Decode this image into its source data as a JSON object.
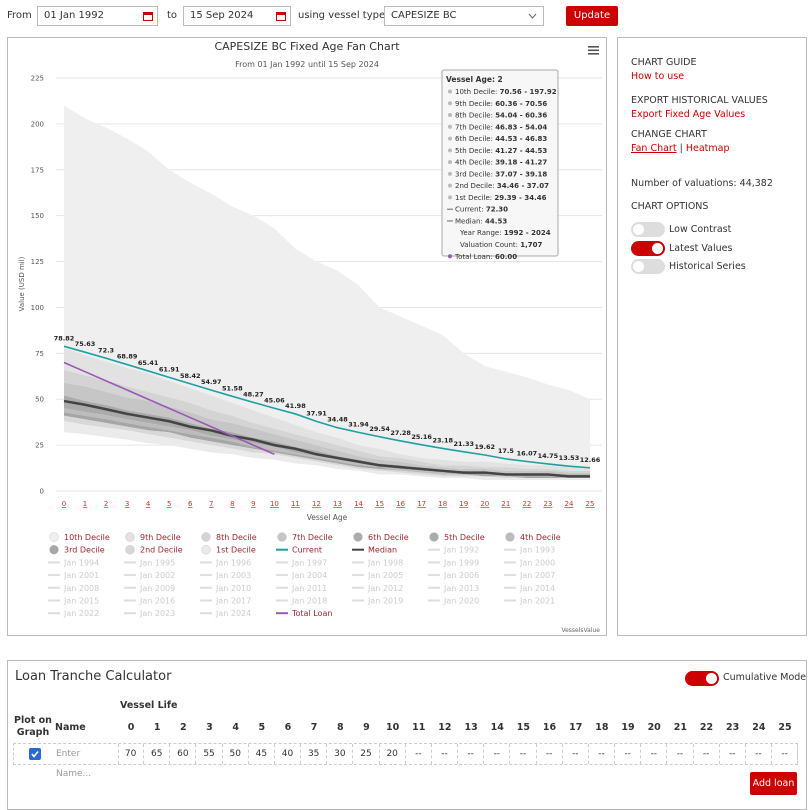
{
  "filters": {
    "from_label": "From",
    "from_date": "01 Jan 1992",
    "to_label": "to",
    "to_date": "15 Sep 2024",
    "vessel_label": "using vessel type",
    "vessel_type": "CAPESIZE BC",
    "button": "Update"
  },
  "chart_data": {
    "type": "fan",
    "title": "CAPESIZE BC Fixed Age Fan Chart",
    "subtitle": "From 01 Jan 1992 until 15 Sep 2024",
    "y_label": "Value (USD mil)",
    "x_label": "Vessel Age",
    "categories": [
      "0",
      "1",
      "2",
      "3",
      "4",
      "5",
      "6",
      "7",
      "8",
      "9",
      "10",
      "11",
      "12",
      "13",
      "14",
      "15",
      "16",
      "17",
      "18",
      "19",
      "20",
      "21",
      "22",
      "23",
      "24",
      "25"
    ],
    "ylim": [
      0,
      225
    ],
    "yticks": [
      0,
      25,
      50,
      75,
      100,
      125,
      150,
      175,
      200,
      225
    ],
    "grid": true,
    "decile_bounds": [
      [
        32,
        31,
        29.39,
        28,
        26,
        25,
        23,
        21,
        20,
        18,
        17,
        15,
        14,
        12,
        11,
        9,
        9,
        8,
        7,
        7,
        6,
        6,
        6,
        6,
        6,
        6
      ],
      [
        38,
        36,
        34.46,
        33,
        31,
        29,
        27,
        25,
        23,
        21,
        20,
        18,
        16,
        14,
        12,
        11,
        10,
        9,
        8,
        8,
        8,
        7,
        7,
        7,
        7,
        7
      ],
      [
        41,
        39,
        37.07,
        35,
        33,
        32,
        29,
        27,
        25,
        23,
        21,
        19,
        17,
        15,
        13,
        12,
        11,
        10,
        9,
        9,
        8,
        8,
        7,
        7,
        7,
        7
      ],
      [
        43,
        41,
        39.18,
        37,
        35,
        33,
        31,
        29,
        27,
        24,
        22,
        20,
        18,
        16,
        14,
        13,
        11,
        10,
        9,
        9,
        9,
        8,
        8,
        8,
        7,
        7
      ],
      [
        45,
        43,
        41.27,
        39,
        37,
        35,
        33,
        30,
        28,
        26,
        24,
        21,
        19,
        17,
        15,
        13,
        12,
        11,
        10,
        9,
        9,
        9,
        8,
        8,
        8,
        8
      ],
      [
        49,
        47,
        44.53,
        42,
        40,
        38,
        35,
        33,
        30,
        28,
        25,
        23,
        20,
        18,
        16,
        14,
        13,
        12,
        11,
        10,
        10,
        9,
        9,
        9,
        8,
        8
      ],
      [
        52,
        49,
        46.83,
        44,
        42,
        40,
        37,
        34,
        32,
        29,
        27,
        24,
        22,
        19,
        17,
        15,
        14,
        12,
        11,
        11,
        10,
        10,
        9,
        9,
        9,
        9
      ],
      [
        59,
        57,
        54.04,
        51,
        49,
        46,
        43,
        39,
        37,
        34,
        31,
        28,
        25,
        22,
        19,
        17,
        16,
        14,
        13,
        12,
        12,
        11,
        11,
        11,
        10,
        10
      ],
      [
        66,
        63,
        60.36,
        57,
        54,
        51,
        48,
        44,
        41,
        37,
        34,
        31,
        28,
        25,
        22,
        19,
        18,
        16,
        14,
        14,
        13,
        13,
        12,
        12,
        11,
        11
      ],
      [
        78,
        74,
        70.56,
        67,
        64,
        60,
        56,
        52,
        48,
        44,
        40,
        36,
        32,
        29,
        25,
        23,
        20,
        18,
        17,
        16,
        16,
        15,
        14,
        14,
        13,
        13
      ],
      [
        210,
        203,
        197.92,
        192,
        185,
        175,
        168,
        162,
        155,
        150,
        143,
        132,
        125,
        120,
        112,
        100,
        95,
        90,
        85,
        75,
        68,
        65,
        62,
        58,
        55,
        50
      ]
    ],
    "bands": [
      {
        "name": "10th Decile",
        "color": "#efefef"
      },
      {
        "name": "9th Decile",
        "color": "#e2e2e2"
      },
      {
        "name": "8th Decile",
        "color": "#d4d4d4"
      },
      {
        "name": "7th Decile",
        "color": "#c6c6c6"
      },
      {
        "name": "6th Decile",
        "color": "#ababab"
      },
      {
        "name": "5th Decile",
        "color": "#ababab"
      },
      {
        "name": "4th Decile",
        "color": "#bcbcbc"
      },
      {
        "name": "3rd Decile",
        "color": "#a6a6a6"
      },
      {
        "name": "2nd Decile",
        "color": "#d8d8d8"
      },
      {
        "name": "1st Decile",
        "color": "#ebebeb"
      }
    ],
    "series": [
      {
        "name": "Current",
        "color": "#1fa0a0",
        "values": [
          78.82,
          75.63,
          72.3,
          68.89,
          65.41,
          61.91,
          58.42,
          54.97,
          51.58,
          48.27,
          45.06,
          41.98,
          37.91,
          34.48,
          31.94,
          29.54,
          27.28,
          25.16,
          23.18,
          21.33,
          19.62,
          17.5,
          16.07,
          14.75,
          13.53,
          12.66
        ]
      },
      {
        "name": "Median",
        "color": "#444444",
        "values": [
          49,
          47,
          44.53,
          42,
          40,
          38,
          35,
          33,
          30,
          28,
          25,
          23,
          20,
          18,
          16,
          14,
          13,
          12,
          11,
          10,
          10,
          9,
          9,
          9,
          8,
          8
        ]
      },
      {
        "name": "Total Loan",
        "color": "#9b59b6",
        "values": [
          70,
          65,
          60,
          55,
          50,
          45,
          40,
          35,
          30,
          25,
          20,
          null,
          null,
          null,
          null,
          null,
          null,
          null,
          null,
          null,
          null,
          null,
          null,
          null,
          null,
          null
        ]
      }
    ],
    "hidden_series": [
      "Jan 1992",
      "Jan 1993",
      "Jan 1994",
      "Jan 1995",
      "Jan 1996",
      "Jan 1997",
      "Jan 1998",
      "Jan 1999",
      "Jan 2000",
      "Jan 2001",
      "Jan 2002",
      "Jan 2003",
      "Jan 2004",
      "Jan 2005",
      "Jan 2006",
      "Jan 2007",
      "Jan 2008",
      "Jan 2009",
      "Jan 2010",
      "Jan 2011",
      "Jan 2012",
      "Jan 2013",
      "Jan 2014",
      "Jan 2015",
      "Jan 2016",
      "Jan 2017",
      "Jan 2018",
      "Jan 2019",
      "Jan 2020",
      "Jan 2021",
      "Jan 2022",
      "Jan 2023",
      "Jan 2024"
    ],
    "tooltip": {
      "title": "Vessel Age: 2",
      "rows": [
        {
          "label": "10th Decile: ",
          "value": "70.56 - 197.92",
          "symbol": "dot"
        },
        {
          "label": "9th Decile: ",
          "value": "60.36 - 70.56",
          "symbol": "dot"
        },
        {
          "label": "8th Decile: ",
          "value": "54.04 - 60.36",
          "symbol": "dot"
        },
        {
          "label": "7th Decile: ",
          "value": "46.83 - 54.04",
          "symbol": "dot"
        },
        {
          "label": "6th Decile: ",
          "value": "44.53 - 46.83",
          "symbol": "dot"
        },
        {
          "label": "5th Decile: ",
          "value": "41.27 - 44.53",
          "symbol": "dot"
        },
        {
          "label": "4th Decile: ",
          "value": "39.18 - 41.27",
          "symbol": "dot"
        },
        {
          "label": "3rd Decile: ",
          "value": "37.07 - 39.18",
          "symbol": "dot"
        },
        {
          "label": "2nd Decile: ",
          "value": "34.46 - 37.07",
          "symbol": "dot"
        },
        {
          "label": "1st Decile: ",
          "value": "29.39 - 34.46",
          "symbol": "dot"
        },
        {
          "label": "Current: ",
          "value": "72.30",
          "symbol": "dash"
        },
        {
          "label": "Median: ",
          "value": "44.53",
          "symbol": "dash"
        },
        {
          "label": "Year Range: ",
          "value": "1992 - 2024",
          "symbol": "none"
        },
        {
          "label": "Valuation Count: ",
          "value": "1,707",
          "symbol": "none"
        },
        {
          "label": "Total Loan: ",
          "value": "60.00",
          "symbol": "loan"
        }
      ]
    },
    "credits": "VesselsValue"
  },
  "sidebar": {
    "guide_heading": "CHART GUIDE",
    "guide_link": "How to use",
    "export_heading": "EXPORT HISTORICAL VALUES",
    "export_link": "Export Fixed Age Values",
    "change_heading": "CHANGE CHART",
    "fan_link": "Fan Chart",
    "separator": "|",
    "heatmap_link": "Heatmap",
    "valuations": "Number of valuations: 44,382",
    "options_heading": "CHART OPTIONS",
    "toggles": [
      {
        "label": "Low Contrast",
        "on": false
      },
      {
        "label": "Latest Values",
        "on": true
      },
      {
        "label": "Historical Series",
        "on": false
      }
    ]
  },
  "calculator": {
    "title": "Loan Tranche Calculator",
    "mode_label": "Cumulative Mode",
    "mode_on": true,
    "plot_header": "Plot on Graph",
    "name_header": "Name",
    "life_header": "Vessel Life",
    "name_placeholder": "Enter Name...",
    "empty_cell": "--",
    "checked": true,
    "button": "Add loan"
  }
}
